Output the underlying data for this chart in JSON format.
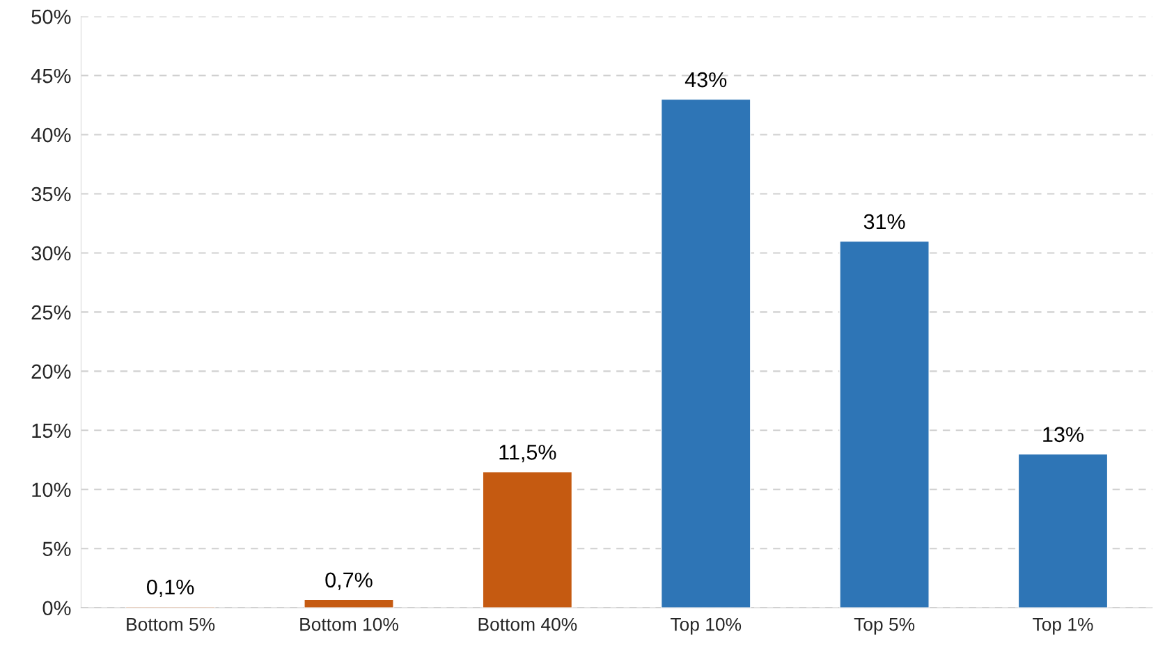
{
  "chart_data": {
    "type": "bar",
    "categories": [
      "Bottom 5%",
      "Bottom 10%",
      "Bottom 40%",
      "Top 10%",
      "Top 5%",
      "Top 1%"
    ],
    "values": [
      0.1,
      0.7,
      11.5,
      43,
      31,
      13
    ],
    "value_labels": [
      "0,1%",
      "0,7%",
      "11,5%",
      "43%",
      "31%",
      "13%"
    ],
    "colors": [
      "#c55a11",
      "#c55a11",
      "#c55a11",
      "#2e75b6",
      "#2e75b6",
      "#2e75b6"
    ],
    "ylim": [
      0,
      50
    ],
    "yticks": [
      {
        "value": 0,
        "label": "0%"
      },
      {
        "value": 5,
        "label": "5%"
      },
      {
        "value": 10,
        "label": "10%"
      },
      {
        "value": 15,
        "label": "15%"
      },
      {
        "value": 20,
        "label": "20%"
      },
      {
        "value": 25,
        "label": "25%"
      },
      {
        "value": 30,
        "label": "30%"
      },
      {
        "value": 35,
        "label": "35%"
      },
      {
        "value": 40,
        "label": "40%"
      },
      {
        "value": 45,
        "label": "45%"
      },
      {
        "value": 50,
        "label": "50%"
      }
    ],
    "grid": "y",
    "legend": false
  }
}
